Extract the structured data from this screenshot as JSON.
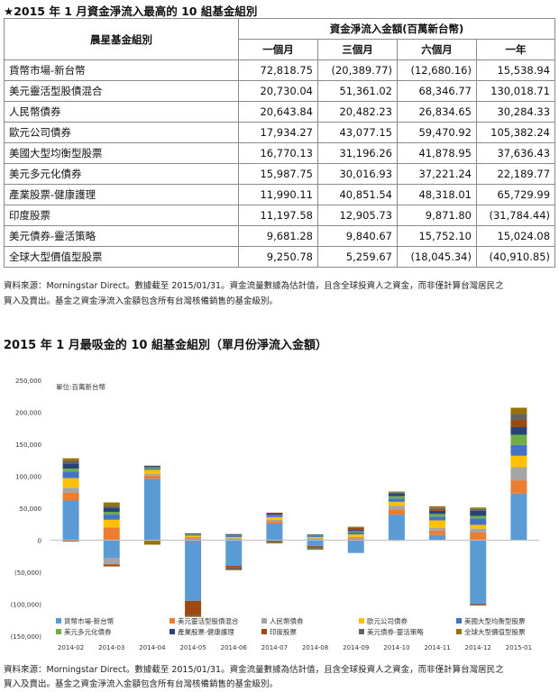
{
  "table_title": "★2015 年 1 月資金淨流入最高的 10 組基金組別",
  "table": {
    "col_group_header": "晨星基金組別",
    "flow_header": "資金淨流入金額(百萬新台幣)",
    "period_headers": [
      "一個月",
      "三個月",
      "六個月",
      "一年"
    ],
    "rows": [
      {
        "name": "貨幣市場-新台幣",
        "values": [
          "72,818.75",
          "(20,389.77)",
          "(12,680.16)",
          "15,538.94"
        ]
      },
      {
        "name": "美元靈活型股債混合",
        "values": [
          "20,730.04",
          "51,361.02",
          "68,346.77",
          "130,018.71"
        ]
      },
      {
        "name": "人民幣債券",
        "values": [
          "20,643.84",
          "20,482.23",
          "26,834.65",
          "30,284.33"
        ]
      },
      {
        "name": "歐元公司債券",
        "values": [
          "17,934.27",
          "43,077.15",
          "59,470.92",
          "105,382.24"
        ]
      },
      {
        "name": "美國大型均衡型股票",
        "values": [
          "16,770.13",
          "31,196.26",
          "41,878.95",
          "37,636.43"
        ]
      },
      {
        "name": "美元多元化債券",
        "values": [
          "15,987.75",
          "30,016.93",
          "37,221.24",
          "22,189.77"
        ]
      },
      {
        "name": "產業股票-健康護理",
        "values": [
          "11,990.11",
          "40,851.54",
          "48,318.01",
          "65,729.99"
        ]
      },
      {
        "name": "印度股票",
        "values": [
          "11,197.58",
          "12,905.73",
          "9,871.80",
          "(31,784.44)"
        ]
      },
      {
        "name": "美元債券-靈活策略",
        "values": [
          "9,681.28",
          "9,840.67",
          "15,752.10",
          "15,024.08"
        ]
      },
      {
        "name": "全球大型價值型股票",
        "values": [
          "9,250.78",
          "5,259.67",
          "(18,045.34)",
          "(40,910.85)"
        ]
      }
    ]
  },
  "source_note_1": {
    "line1": "資料來源：Morningstar Direct。數據截至 2015/01/31。資金流量數據為估計值，且含全球投資人之資金，而非僅計算台灣居民之",
    "line2": "買入及賣出。基金之資金淨流入金額包含所有台灣核備銷售的基金級別。"
  },
  "chart_title": "2015 年 1 月最吸金的 10 組基金組別（單月份淨流入金額）",
  "source_note_2": {
    "line1": "資料來源：Morningstar Direct。數據截至 2015/01/31。資金流量數據為估計值，且含全球投資人之資金，而非僅計算台灣居民之",
    "line2": "買入及賣出。基金之資金淨流入金額包含所有台灣核備銷售的基金級別。"
  },
  "chart_data": {
    "type": "bar",
    "stacked": true,
    "unit_label": "單位:百萬新台幣",
    "ylim": [
      -150000,
      250000
    ],
    "yticks": [
      -150000,
      -100000,
      -50000,
      0,
      50000,
      100000,
      150000,
      200000,
      250000
    ],
    "ytick_labels": [
      "(150,000)",
      "(100,000)",
      "(50,000)",
      "0",
      "50,000",
      "100,000",
      "150,000",
      "200,000",
      "250,000"
    ],
    "categories": [
      "2014-02",
      "2014-03",
      "2014-04",
      "2014-05",
      "2014-06",
      "2014-07",
      "2014-08",
      "2014-09",
      "2014-10",
      "2014-11",
      "2014-12",
      "2015-01"
    ],
    "legend_position": "bottom",
    "series": [
      {
        "name": "貨幣市場-新台幣",
        "color": "#5b9bd5",
        "values": [
          62000,
          -28000,
          96000,
          -95000,
          -40000,
          26000,
          -9000,
          -20000,
          40000,
          8000,
          -100000,
          72800
        ]
      },
      {
        "name": "美元靈活型股債混合",
        "color": "#ed7d31",
        "values": [
          12000,
          20000,
          5000,
          3000,
          2000,
          4000,
          2000,
          3000,
          8000,
          7000,
          12000,
          20700
        ]
      },
      {
        "name": "人民幣債券",
        "color": "#a5a5a5",
        "values": [
          8000,
          -10000,
          3000,
          2000,
          1000,
          2000,
          1000,
          2000,
          6000,
          4000,
          6000,
          20600
        ]
      },
      {
        "name": "歐元公司債券",
        "color": "#ffc000",
        "values": [
          15000,
          12000,
          6000,
          2000,
          2000,
          4000,
          2000,
          4000,
          6000,
          12000,
          6000,
          17900
        ]
      },
      {
        "name": "美國大型均衡型股票",
        "color": "#4472c4",
        "values": [
          10000,
          8000,
          2000,
          1000,
          2000,
          2000,
          2000,
          3000,
          5000,
          6000,
          10000,
          16800
        ]
      },
      {
        "name": "美元多元化債券",
        "color": "#70ad47",
        "values": [
          5000,
          4000,
          2000,
          1000,
          1000,
          1500,
          1000,
          2000,
          4000,
          4000,
          4000,
          16000
        ]
      },
      {
        "name": "產業股票-健康護理",
        "color": "#264478",
        "values": [
          8000,
          6000,
          1500,
          1500,
          1500,
          2000,
          1000,
          2000,
          4000,
          5000,
          8000,
          12000
        ]
      },
      {
        "name": "印度股票",
        "color": "#9e480e",
        "values": [
          -2000,
          -3000,
          -1000,
          -22000,
          -2000,
          1500,
          -1000,
          3000,
          -1000,
          3000,
          -2000,
          11200
        ]
      },
      {
        "name": "美元債券-靈活策略",
        "color": "#636363",
        "values": [
          4000,
          4000,
          1000,
          -2000,
          -4000,
          -3000,
          -3000,
          1000,
          2000,
          2000,
          3000,
          9700
        ]
      },
      {
        "name": "全球大型價值型股票",
        "color": "#997300",
        "values": [
          4000,
          5000,
          -6000,
          -1000,
          -1000,
          -2000,
          -2000,
          1000,
          1000,
          2000,
          2000,
          9300
        ]
      }
    ]
  }
}
